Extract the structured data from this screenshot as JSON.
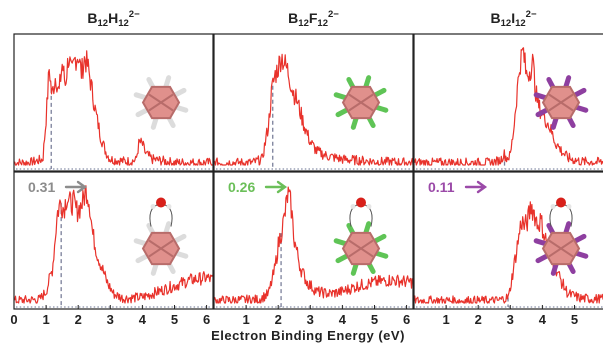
{
  "chart_data": {
    "type": "line",
    "xlabel": "Electron Binding Energy (eV)",
    "xlim": [
      0,
      6.2
    ],
    "x_ticks": [
      "0",
      "1",
      "2",
      "3",
      "4",
      "5",
      "6"
    ],
    "line_color": "#e8322b",
    "vline_color": "#7a7f9a",
    "columns": [
      {
        "title": {
          "base": "B",
          "n1": "12",
          "x": "H",
          "n2": "12",
          "charge": "2−"
        },
        "shift_label": "0.31",
        "shift_color": "#8c8c8c",
        "top": {
          "vline": 1.16,
          "series": [
            [
              0,
              0.02
            ],
            [
              0.5,
              0.02
            ],
            [
              0.9,
              0.05
            ],
            [
              1.0,
              0.4
            ],
            [
              1.1,
              0.85
            ],
            [
              1.18,
              0.6
            ],
            [
              1.3,
              0.78
            ],
            [
              1.4,
              0.62
            ],
            [
              1.5,
              0.88
            ],
            [
              1.6,
              0.7
            ],
            [
              1.7,
              0.95
            ],
            [
              1.8,
              0.78
            ],
            [
              1.9,
              0.92
            ],
            [
              2.0,
              0.96
            ],
            [
              2.1,
              0.8
            ],
            [
              2.2,
              0.93
            ],
            [
              2.3,
              0.86
            ],
            [
              2.4,
              0.7
            ],
            [
              2.55,
              0.45
            ],
            [
              2.7,
              0.25
            ],
            [
              2.85,
              0.12
            ],
            [
              3.0,
              0.05
            ],
            [
              3.5,
              0.03
            ],
            [
              3.8,
              0.04
            ],
            [
              3.9,
              0.2
            ],
            [
              4.0,
              0.18
            ],
            [
              4.1,
              0.1
            ],
            [
              4.3,
              0.05
            ],
            [
              5.0,
              0.02
            ],
            [
              6.2,
              0.02
            ]
          ]
        },
        "bottom": {
          "vline": 1.47,
          "series": [
            [
              0,
              0.02
            ],
            [
              0.8,
              0.03
            ],
            [
              1.0,
              0.1
            ],
            [
              1.2,
              0.3
            ],
            [
              1.35,
              0.78
            ],
            [
              1.45,
              0.88
            ],
            [
              1.55,
              0.82
            ],
            [
              1.65,
              0.93
            ],
            [
              1.75,
              0.86
            ],
            [
              1.85,
              0.88
            ],
            [
              1.95,
              0.8
            ],
            [
              2.05,
              0.83
            ],
            [
              2.15,
              0.88
            ],
            [
              2.25,
              1.0
            ],
            [
              2.35,
              0.88
            ],
            [
              2.45,
              0.6
            ],
            [
              2.6,
              0.42
            ],
            [
              2.75,
              0.3
            ],
            [
              2.9,
              0.18
            ],
            [
              3.1,
              0.08
            ],
            [
              3.4,
              0.04
            ],
            [
              4.0,
              0.05
            ],
            [
              4.5,
              0.1
            ],
            [
              5.0,
              0.15
            ],
            [
              5.5,
              0.2
            ],
            [
              6.0,
              0.22
            ],
            [
              6.2,
              0.2
            ]
          ]
        }
      },
      {
        "title": {
          "base": "B",
          "n1": "12",
          "x": "F",
          "n2": "12",
          "charge": "2−"
        },
        "shift_label": "0.26",
        "shift_color": "#6bbf59",
        "top": {
          "vline": 1.83,
          "series": [
            [
              0,
              0.02
            ],
            [
              1.2,
              0.02
            ],
            [
              1.5,
              0.05
            ],
            [
              1.7,
              0.35
            ],
            [
              1.8,
              0.65
            ],
            [
              1.9,
              0.78
            ],
            [
              2.0,
              0.85
            ],
            [
              2.1,
              0.95
            ],
            [
              2.2,
              0.88
            ],
            [
              2.3,
              0.82
            ],
            [
              2.45,
              0.65
            ],
            [
              2.6,
              0.55
            ],
            [
              2.8,
              0.35
            ],
            [
              3.0,
              0.2
            ],
            [
              3.2,
              0.12
            ],
            [
              3.5,
              0.08
            ],
            [
              4.0,
              0.05
            ],
            [
              5.0,
              0.03
            ],
            [
              6.2,
              0.02
            ]
          ]
        },
        "bottom": {
          "vline": 2.09,
          "series": [
            [
              0,
              0.02
            ],
            [
              1.4,
              0.03
            ],
            [
              1.7,
              0.08
            ],
            [
              1.9,
              0.3
            ],
            [
              2.0,
              0.5
            ],
            [
              2.1,
              0.62
            ],
            [
              2.2,
              0.75
            ],
            [
              2.3,
              0.95
            ],
            [
              2.4,
              0.85
            ],
            [
              2.5,
              0.55
            ],
            [
              2.7,
              0.3
            ],
            [
              2.9,
              0.18
            ],
            [
              3.2,
              0.1
            ],
            [
              3.6,
              0.08
            ],
            [
              4.0,
              0.1
            ],
            [
              4.5,
              0.15
            ],
            [
              5.0,
              0.18
            ],
            [
              5.5,
              0.2
            ],
            [
              6.2,
              0.18
            ]
          ]
        }
      },
      {
        "title": {
          "base": "B",
          "n1": "12",
          "x": "I",
          "n2": "12",
          "charge": "2−"
        },
        "shift_label": "0.11",
        "shift_color": "#9b4aa8",
        "top": {
          "vline": 2.82,
          "series": [
            [
              0,
              0.02
            ],
            [
              2.4,
              0.02
            ],
            [
              2.7,
              0.04
            ],
            [
              2.8,
              0.1
            ],
            [
              2.88,
              0.06
            ],
            [
              3.0,
              0.08
            ],
            [
              3.1,
              0.3
            ],
            [
              3.2,
              0.6
            ],
            [
              3.3,
              0.88
            ],
            [
              3.4,
              1.0
            ],
            [
              3.5,
              0.78
            ],
            [
              3.6,
              0.82
            ],
            [
              3.7,
              0.9
            ],
            [
              3.8,
              0.62
            ],
            [
              3.9,
              0.5
            ],
            [
              4.0,
              0.45
            ],
            [
              4.2,
              0.35
            ],
            [
              4.4,
              0.2
            ],
            [
              4.6,
              0.12
            ],
            [
              4.8,
              0.06
            ],
            [
              5.2,
              0.03
            ],
            [
              6.2,
              0.02
            ]
          ]
        },
        "bottom": {
          "vline": 2.93,
          "series": [
            [
              0,
              0.02
            ],
            [
              2.6,
              0.02
            ],
            [
              2.95,
              0.05
            ],
            [
              3.1,
              0.3
            ],
            [
              3.25,
              0.55
            ],
            [
              3.35,
              0.72
            ],
            [
              3.45,
              0.66
            ],
            [
              3.55,
              0.72
            ],
            [
              3.65,
              0.85
            ],
            [
              3.75,
              0.78
            ],
            [
              3.85,
              0.68
            ],
            [
              3.95,
              0.72
            ],
            [
              4.05,
              0.6
            ],
            [
              4.2,
              0.48
            ],
            [
              4.4,
              0.32
            ],
            [
              4.6,
              0.18
            ],
            [
              4.8,
              0.08
            ],
            [
              5.2,
              0.04
            ],
            [
              6.2,
              0.03
            ]
          ]
        }
      }
    ]
  }
}
